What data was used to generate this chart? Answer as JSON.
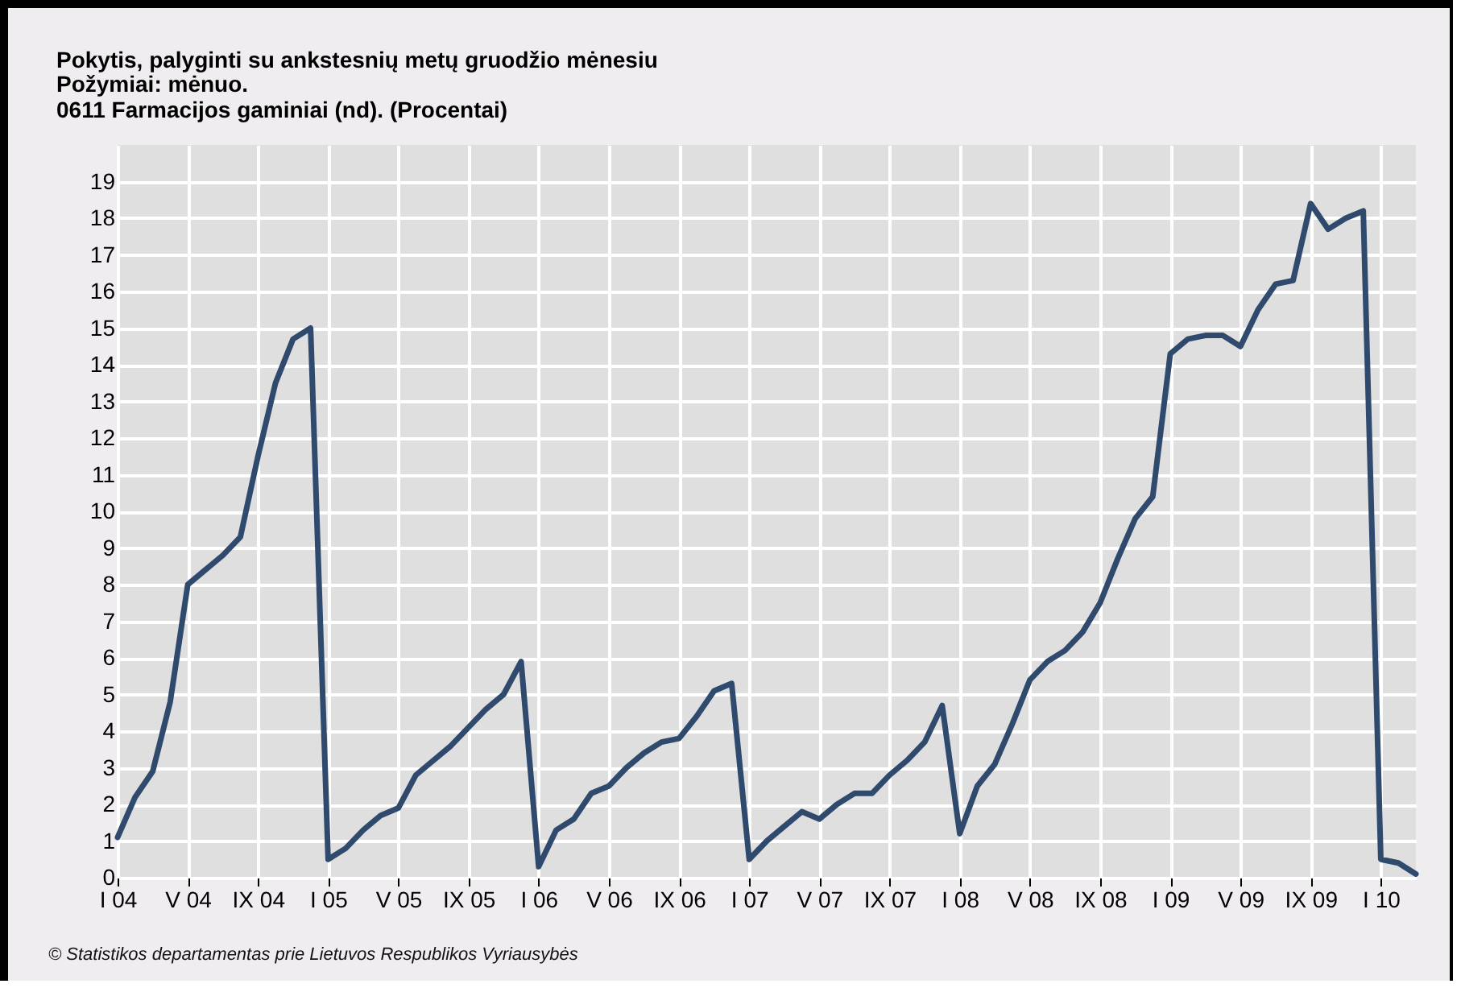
{
  "chart_data": {
    "type": "line",
    "title": "Pokytis, palyginti su ankstesnių metų gruodžio mėnesiu",
    "subtitle": "Požymiai: mėnuo.\n0611 Farmacijos gaminiai (nd). (Procentai)",
    "categories": [
      "I 04",
      null,
      null,
      null,
      "V 04",
      null,
      null,
      null,
      "IX 04",
      null,
      null,
      null,
      "I 05",
      null,
      null,
      null,
      "V 05",
      null,
      null,
      null,
      "IX 05",
      null,
      null,
      null,
      "I 06",
      null,
      null,
      null,
      "V 06",
      null,
      null,
      null,
      "IX 06",
      null,
      null,
      null,
      "I 07",
      null,
      null,
      null,
      "V 07",
      null,
      null,
      null,
      "IX 07",
      null,
      null,
      null,
      "I 08",
      null,
      null,
      null,
      "V 08",
      null,
      null,
      null,
      "IX 08",
      null,
      null,
      null,
      "I 09",
      null,
      null,
      null,
      "V 09",
      null,
      null,
      null,
      "IX 09",
      null,
      null,
      null,
      "I 10",
      null,
      null
    ],
    "series": [
      {
        "color": "#2f4a6d",
        "values": [
          1.1,
          2.2,
          2.9,
          4.8,
          8.0,
          8.4,
          8.8,
          9.3,
          11.5,
          13.5,
          14.7,
          15.0,
          0.5,
          0.8,
          1.3,
          1.7,
          1.9,
          2.8,
          3.2,
          3.6,
          4.1,
          4.6,
          5.0,
          5.9,
          0.3,
          1.3,
          1.6,
          2.3,
          2.5,
          3.0,
          3.4,
          3.7,
          3.8,
          4.4,
          5.1,
          5.3,
          0.5,
          1.0,
          1.4,
          1.8,
          1.6,
          2.0,
          2.3,
          2.3,
          2.8,
          3.2,
          3.7,
          4.7,
          1.2,
          2.5,
          3.1,
          4.2,
          5.4,
          5.9,
          6.2,
          6.7,
          7.5,
          8.7,
          9.8,
          10.4,
          14.3,
          14.7,
          14.8,
          14.8,
          14.5,
          15.5,
          16.2,
          16.3,
          18.4,
          17.7,
          18.0,
          18.2,
          0.5,
          0.4,
          0.1
        ]
      }
    ],
    "ylim": [
      0,
      20
    ],
    "yticks": [
      0,
      1,
      2,
      3,
      4,
      5,
      6,
      7,
      8,
      9,
      10,
      11,
      12,
      13,
      14,
      15,
      16,
      17,
      18,
      19
    ],
    "grid": true,
    "marker": "none",
    "line_style": "solid",
    "annotations": [
      "© Statistikos departamentas prie Lietuvos Respublikos Vyriausybės"
    ]
  }
}
